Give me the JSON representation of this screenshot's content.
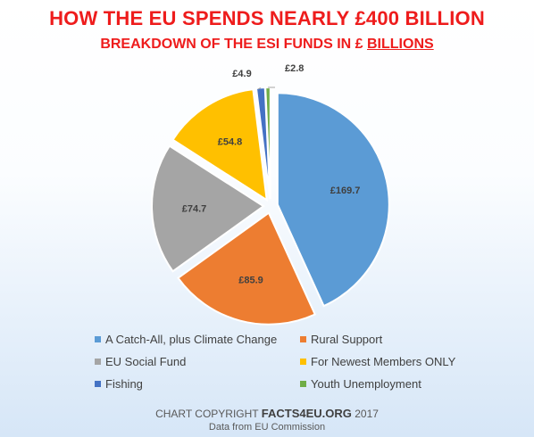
{
  "chart_data": {
    "type": "pie",
    "title": "HOW THE EU SPENDS NEARLY £400 BILLION",
    "subtitle_prefix": "BREAKDOWN OF THE ESI FUNDS IN £",
    "subtitle_emphasis": "BILLIONS",
    "slices": [
      {
        "label": "A Catch-All, plus Climate Change",
        "value": 169.7,
        "data_label": "£169.7",
        "color": "#5b9bd5"
      },
      {
        "label": "Rural Support",
        "value": 85.9,
        "data_label": "£85.9",
        "color": "#ed7d31"
      },
      {
        "label": "EU Social Fund",
        "value": 74.7,
        "data_label": "£74.7",
        "color": "#a5a5a5"
      },
      {
        "label": "For Newest Members ONLY",
        "value": 54.8,
        "data_label": "£54.8",
        "color": "#ffc000"
      },
      {
        "label": "Fishing",
        "value": 4.9,
        "data_label": "£4.9",
        "color": "#4472c4"
      },
      {
        "label": "Youth Unemployment",
        "value": 2.8,
        "data_label": "£2.8",
        "color": "#70ad47"
      }
    ],
    "legend_position": "bottom"
  },
  "credit": {
    "prefix": "CHART COPYRIGHT",
    "brand": "FACTS4EU.ORG",
    "year": "2017",
    "source": "Data from EU Commission"
  }
}
